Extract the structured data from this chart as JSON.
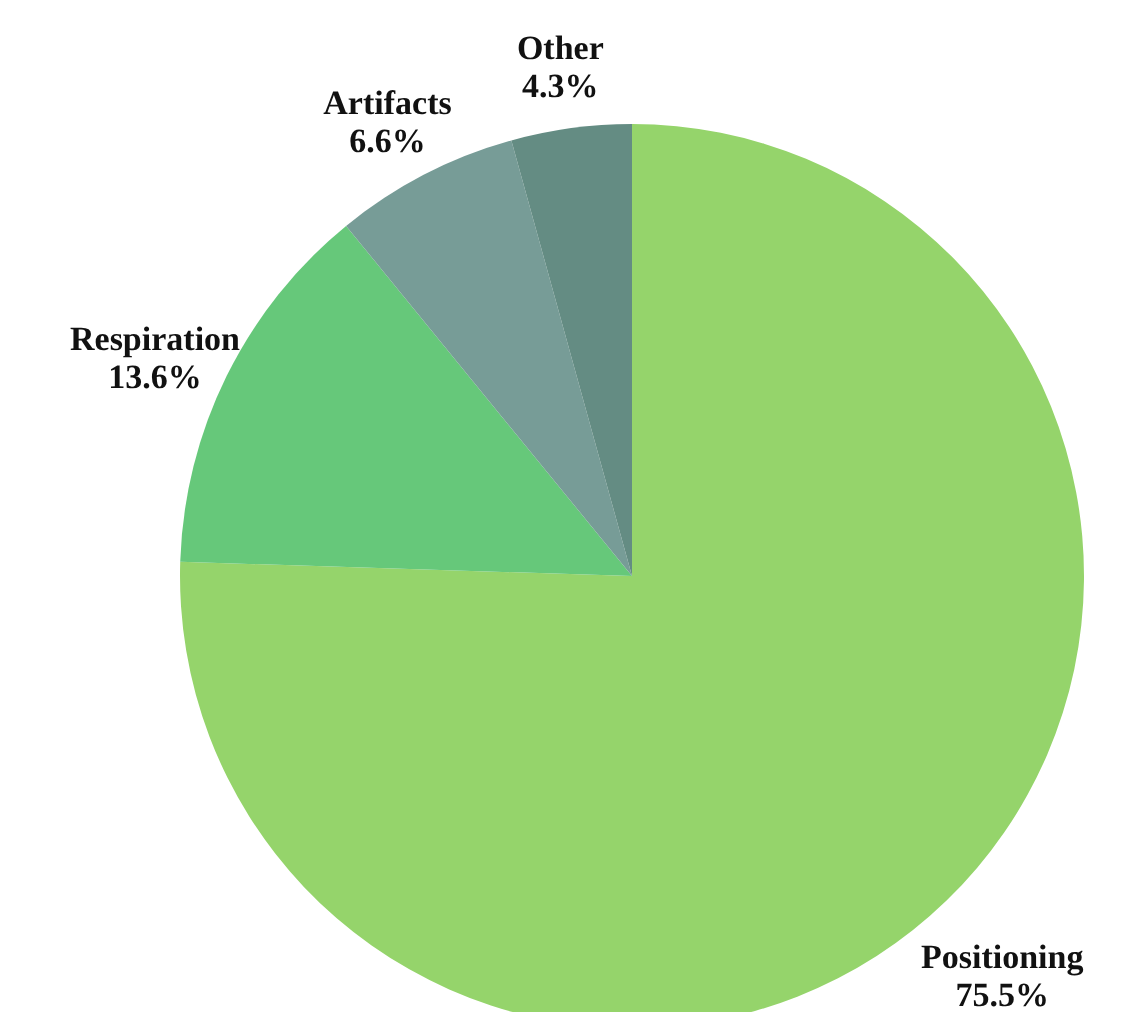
{
  "chart_data": {
    "type": "pie",
    "categories": [
      "Positioning",
      "Respiration",
      "Artifacts",
      "Other"
    ],
    "values": [
      75.5,
      13.6,
      6.6,
      4.3
    ],
    "value_labels": [
      "75.5%",
      "13.6%",
      "6.6%",
      "4.3%"
    ],
    "colors": [
      "#95d46b",
      "#66c87a",
      "#779c97",
      "#648c83"
    ]
  }
}
